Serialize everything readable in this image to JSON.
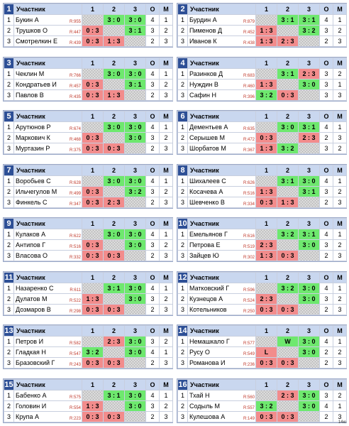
{
  "header": {
    "col_name": "Участник",
    "c1": "1",
    "c2": "2",
    "c3": "3",
    "co": "О",
    "cm": "М"
  },
  "footer": "14ю",
  "groups": [
    {
      "num": "1",
      "rows": [
        {
          "i": "1",
          "name": "Букин А",
          "r": "R:955",
          "s1": "",
          "s2": "3 : 0",
          "s3": "3 : 0",
          "o": "4",
          "m": "1"
        },
        {
          "i": "2",
          "name": "Трушков О",
          "r": "R:447",
          "s1": "0 : 3",
          "s2": "",
          "s3": "3 : 1",
          "o": "3",
          "m": "2"
        },
        {
          "i": "3",
          "name": "Смотрелкин Е",
          "r": "R:439",
          "s1": "0 : 3",
          "s2": "1 : 3",
          "s3": "",
          "o": "2",
          "m": "3"
        }
      ]
    },
    {
      "num": "2",
      "rows": [
        {
          "i": "1",
          "name": "Бурдин А",
          "r": "R:879",
          "s1": "",
          "s2": "3 : 1",
          "s3": "3 : 1",
          "o": "4",
          "m": "1"
        },
        {
          "i": "2",
          "name": "Пименов Д",
          "r": "R:452",
          "s1": "1 : 3",
          "s2": "",
          "s3": "3 : 2",
          "o": "3",
          "m": "2"
        },
        {
          "i": "3",
          "name": "Иванов К",
          "r": "R:438",
          "s1": "1 : 3",
          "s2": "2 : 3",
          "s3": "",
          "o": "2",
          "m": "3"
        }
      ]
    },
    {
      "num": "3",
      "rows": [
        {
          "i": "1",
          "name": "Чеклин М",
          "r": "R:766",
          "s1": "",
          "s2": "3 : 0",
          "s3": "3 : 0",
          "o": "4",
          "m": "1"
        },
        {
          "i": "2",
          "name": "Кондратьев И",
          "r": "R:457",
          "s1": "0 : 3",
          "s2": "",
          "s3": "3 : 1",
          "o": "3",
          "m": "2"
        },
        {
          "i": "3",
          "name": "Павлов В",
          "r": "R:435",
          "s1": "0 : 3",
          "s2": "1 : 3",
          "s3": "",
          "o": "2",
          "m": "3"
        }
      ]
    },
    {
      "num": "4",
      "rows": [
        {
          "i": "1",
          "name": "Разинков Д",
          "r": "R:683",
          "s1": "",
          "s2": "3 : 1",
          "s3": "2 : 3",
          "o": "3",
          "m": "2"
        },
        {
          "i": "2",
          "name": "Нуждин В",
          "r": "R:460",
          "s1": "1 : 3",
          "s2": "",
          "s3": "3 : 0",
          "o": "3",
          "m": "1"
        },
        {
          "i": "3",
          "name": "Сафин Н",
          "r": "R:396",
          "s1": "3 : 2",
          "s2": "0 : 3",
          "s3": "",
          "o": "3",
          "m": "3"
        }
      ]
    },
    {
      "num": "5",
      "rows": [
        {
          "i": "1",
          "name": "Арутюнов Р",
          "r": "R:674",
          "s1": "",
          "s2": "3 : 0",
          "s3": "3 : 0",
          "o": "4",
          "m": "1"
        },
        {
          "i": "2",
          "name": "Маркович К",
          "r": "R:468",
          "s1": "0 : 3",
          "s2": "",
          "s3": "3 : 0",
          "o": "3",
          "m": "2"
        },
        {
          "i": "3",
          "name": "Муртазин Р",
          "r": "R:375",
          "s1": "0 : 3",
          "s2": "0 : 3",
          "s3": "",
          "o": "2",
          "m": "3"
        }
      ]
    },
    {
      "num": "6",
      "rows": [
        {
          "i": "1",
          "name": "Дементьев А",
          "r": "R:635",
          "s1": "",
          "s2": "3 : 0",
          "s3": "3 : 1",
          "o": "4",
          "m": "1"
        },
        {
          "i": "2",
          "name": "Серышев М",
          "r": "R:472",
          "s1": "0 : 3",
          "s2": "",
          "s3": "2 : 3",
          "o": "2",
          "m": "3"
        },
        {
          "i": "3",
          "name": "Шорбатов М",
          "r": "R:367",
          "s1": "1 : 3",
          "s2": "3 : 2",
          "s3": "",
          "o": "3",
          "m": "2"
        }
      ]
    },
    {
      "num": "7",
      "rows": [
        {
          "i": "1",
          "name": "Воробьев С",
          "r": "R:628",
          "s1": "",
          "s2": "3 : 0",
          "s3": "3 : 0",
          "o": "4",
          "m": "1"
        },
        {
          "i": "2",
          "name": "Ильчегулов М",
          "r": "R:499",
          "s1": "0 : 3",
          "s2": "",
          "s3": "3 : 2",
          "o": "3",
          "m": "2"
        },
        {
          "i": "3",
          "name": "Финкель С",
          "r": "R:347",
          "s1": "0 : 3",
          "s2": "2 : 3",
          "s3": "",
          "o": "2",
          "m": "3"
        }
      ]
    },
    {
      "num": "8",
      "rows": [
        {
          "i": "1",
          "name": "Шихалеев С",
          "r": "R:626",
          "s1": "",
          "s2": "3 : 1",
          "s3": "3 : 0",
          "o": "4",
          "m": "1"
        },
        {
          "i": "2",
          "name": "Косачева А",
          "r": "R:516",
          "s1": "1 : 3",
          "s2": "",
          "s3": "3 : 1",
          "o": "3",
          "m": "2"
        },
        {
          "i": "3",
          "name": "Шевченко В",
          "r": "R:334",
          "s1": "0 : 3",
          "s2": "1 : 3",
          "s3": "",
          "o": "2",
          "m": "3"
        }
      ]
    },
    {
      "num": "9",
      "rows": [
        {
          "i": "1",
          "name": "Кулаков А",
          "r": "R:622",
          "s1": "",
          "s2": "3 : 0",
          "s3": "3 : 0",
          "o": "4",
          "m": "1"
        },
        {
          "i": "2",
          "name": "Антипов Г",
          "r": "R:516",
          "s1": "0 : 3",
          "s2": "",
          "s3": "3 : 0",
          "o": "3",
          "m": "2"
        },
        {
          "i": "3",
          "name": "Власова О",
          "r": "R:332",
          "s1": "0 : 3",
          "s2": "0 : 3",
          "s3": "",
          "o": "2",
          "m": "3"
        }
      ]
    },
    {
      "num": "10",
      "rows": [
        {
          "i": "1",
          "name": "Емельянов Г",
          "r": "R:616",
          "s1": "",
          "s2": "3 : 2",
          "s3": "3 : 1",
          "o": "4",
          "m": "1"
        },
        {
          "i": "2",
          "name": "Петрова Е",
          "r": "R:519",
          "s1": "2 : 3",
          "s2": "",
          "s3": "3 : 0",
          "o": "3",
          "m": "2"
        },
        {
          "i": "3",
          "name": "Зайцев Ю",
          "r": "R:302",
          "s1": "1 : 3",
          "s2": "0 : 3",
          "s3": "",
          "o": "2",
          "m": "3"
        }
      ]
    },
    {
      "num": "11",
      "rows": [
        {
          "i": "1",
          "name": "Назаренко С",
          "r": "R:611",
          "s1": "",
          "s2": "3 : 1",
          "s3": "3 : 0",
          "o": "4",
          "m": "1"
        },
        {
          "i": "2",
          "name": "Дулатов М",
          "r": "R:522",
          "s1": "1 : 3",
          "s2": "",
          "s3": "3 : 0",
          "o": "3",
          "m": "2"
        },
        {
          "i": "3",
          "name": "Дозмаров В",
          "r": "R:298",
          "s1": "0 : 3",
          "s2": "0 : 3",
          "s3": "",
          "o": "2",
          "m": "3"
        }
      ]
    },
    {
      "num": "12",
      "rows": [
        {
          "i": "1",
          "name": "Матковский Г",
          "r": "R:596",
          "s1": "",
          "s2": "3 : 2",
          "s3": "3 : 0",
          "o": "4",
          "m": "1"
        },
        {
          "i": "2",
          "name": "Кузнецов А",
          "r": "R:524",
          "s1": "2 : 3",
          "s2": "",
          "s3": "3 : 0",
          "o": "3",
          "m": "2"
        },
        {
          "i": "3",
          "name": "Котельников",
          "r": "R:250",
          "s1": "0 : 3",
          "s2": "0 : 3",
          "s3": "",
          "o": "2",
          "m": "3"
        }
      ]
    },
    {
      "num": "13",
      "rows": [
        {
          "i": "1",
          "name": "Петров И",
          "r": "R:582",
          "s1": "",
          "s2": "2 : 3",
          "s3": "3 : 0",
          "o": "3",
          "m": "2"
        },
        {
          "i": "2",
          "name": "Гладкая Н",
          "r": "R:547",
          "s1": "3 : 2",
          "s2": "",
          "s3": "3 : 0",
          "o": "4",
          "m": "1"
        },
        {
          "i": "3",
          "name": "Бразовский Г",
          "r": "R:243",
          "s1": "0 : 3",
          "s2": "0 : 3",
          "s3": "",
          "o": "2",
          "m": "3"
        }
      ]
    },
    {
      "num": "14",
      "rows": [
        {
          "i": "1",
          "name": "Немашкало Г",
          "r": "R:577",
          "s1": "",
          "s2": "W",
          "s3": "3 : 0",
          "o": "4",
          "m": "1"
        },
        {
          "i": "2",
          "name": "Русу О",
          "r": "R:549",
          "s1": "L",
          "s2": "",
          "s3": "3 : 0",
          "o": "2",
          "m": "2"
        },
        {
          "i": "3",
          "name": "Романова И",
          "r": "R:236",
          "s1": "0 : 3",
          "s2": "0 : 3",
          "s3": "",
          "o": "2",
          "m": "3"
        }
      ]
    },
    {
      "num": "15",
      "rows": [
        {
          "i": "1",
          "name": "Бабенко А",
          "r": "R:575",
          "s1": "",
          "s2": "3 : 1",
          "s3": "3 : 0",
          "o": "4",
          "m": "1"
        },
        {
          "i": "2",
          "name": "Головин И",
          "r": "R:554",
          "s1": "1 : 3",
          "s2": "",
          "s3": "3 : 0",
          "o": "3",
          "m": "2"
        },
        {
          "i": "3",
          "name": "Крупа А",
          "r": "R:223",
          "s1": "0 : 3",
          "s2": "0 : 3",
          "s3": "",
          "o": "2",
          "m": "3"
        }
      ]
    },
    {
      "num": "16",
      "rows": [
        {
          "i": "1",
          "name": "Тхай Н",
          "r": "R:560",
          "s1": "",
          "s2": "2 : 3",
          "s3": "3 : 0",
          "o": "3",
          "m": "2"
        },
        {
          "i": "2",
          "name": "Содыль М",
          "r": "R:557",
          "s1": "3 : 2",
          "s2": "",
          "s3": "3 : 0",
          "o": "4",
          "m": "1"
        },
        {
          "i": "3",
          "name": "Кулешова А",
          "r": "R:149",
          "s1": "0 : 3",
          "s2": "0 : 3",
          "s3": "",
          "o": "2",
          "m": "3"
        }
      ]
    }
  ]
}
